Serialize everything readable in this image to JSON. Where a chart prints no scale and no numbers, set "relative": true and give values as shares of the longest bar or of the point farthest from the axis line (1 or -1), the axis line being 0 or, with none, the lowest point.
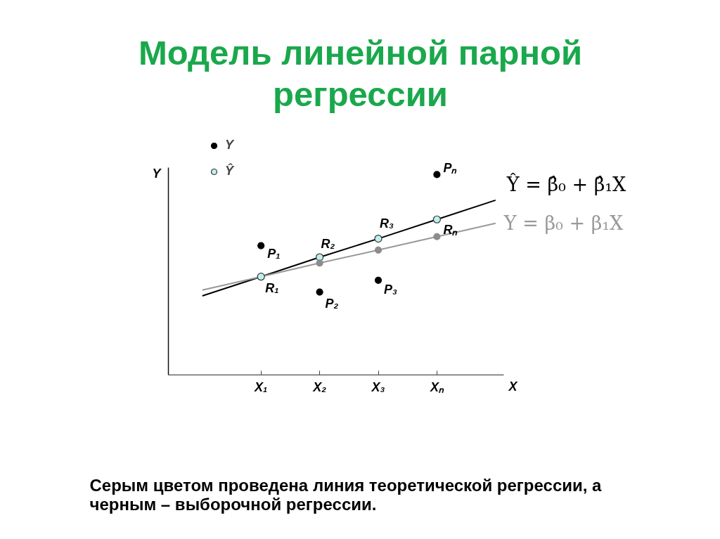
{
  "chart_data": {
    "type": "scatter",
    "title": "Модель линейной парной регрессии",
    "xlabel": "X",
    "ylabel": "Y",
    "relative": true,
    "tick_labels": "x",
    "legend": "top left",
    "categories": [
      null,
      "X₁",
      "X₂",
      "X₃",
      "Xₙ",
      null
    ],
    "series": [
      {
        "name": "Y",
        "marker": "circle",
        "color": "#000000",
        "values": [
          null,
          0.645,
          0.413,
          0.472,
          1,
          null
        ]
      },
      {
        "name": "Ŷ",
        "marker": "circle",
        "color": "#bff0f0",
        "values": [
          null,
          0.49,
          0.587,
          0.68,
          0.776,
          null
        ]
      },
      {
        "marker": "circle",
        "color": "#8c8c8c",
        "values": [
          null,
          null,
          0.558,
          0.623,
          0.69,
          null
        ]
      },
      {
        "name": "Ŷ = β̂₀ + β̂₁X",
        "type": "line",
        "marker": "none",
        "color": "#000000",
        "values": [
          0.394,
          0.49,
          0.587,
          0.68,
          0.776,
          0.872
        ]
      },
      {
        "name": "Y = β₀ + β₁X",
        "type": "line",
        "marker": "none",
        "color": "#999999",
        "values": [
          0.423,
          0.49,
          0.558,
          0.623,
          0.69,
          0.757
        ]
      }
    ],
    "annotations": [
      {
        "text": "P₁",
        "x": "X₁",
        "y": 0.645
      },
      {
        "text": "P₂",
        "x": "X₂",
        "y": 0.413
      },
      {
        "text": "P₃",
        "x": "X₃",
        "y": 0.472
      },
      {
        "text": "Pₙ",
        "x": "Xₙ",
        "y": 1
      },
      {
        "text": "R₁",
        "x": "X₁",
        "y": 0.49
      },
      {
        "text": "R₂",
        "x": "X₂",
        "y": 0.587
      },
      {
        "text": "R₃",
        "x": "X₃",
        "y": 0.68
      },
      {
        "text": "Rₙ",
        "x": "Xₙ",
        "y": 0.776
      },
      "Серым цветом проведена линия теоретической регрессии, а черным – выборочной регрессии."
    ]
  }
}
